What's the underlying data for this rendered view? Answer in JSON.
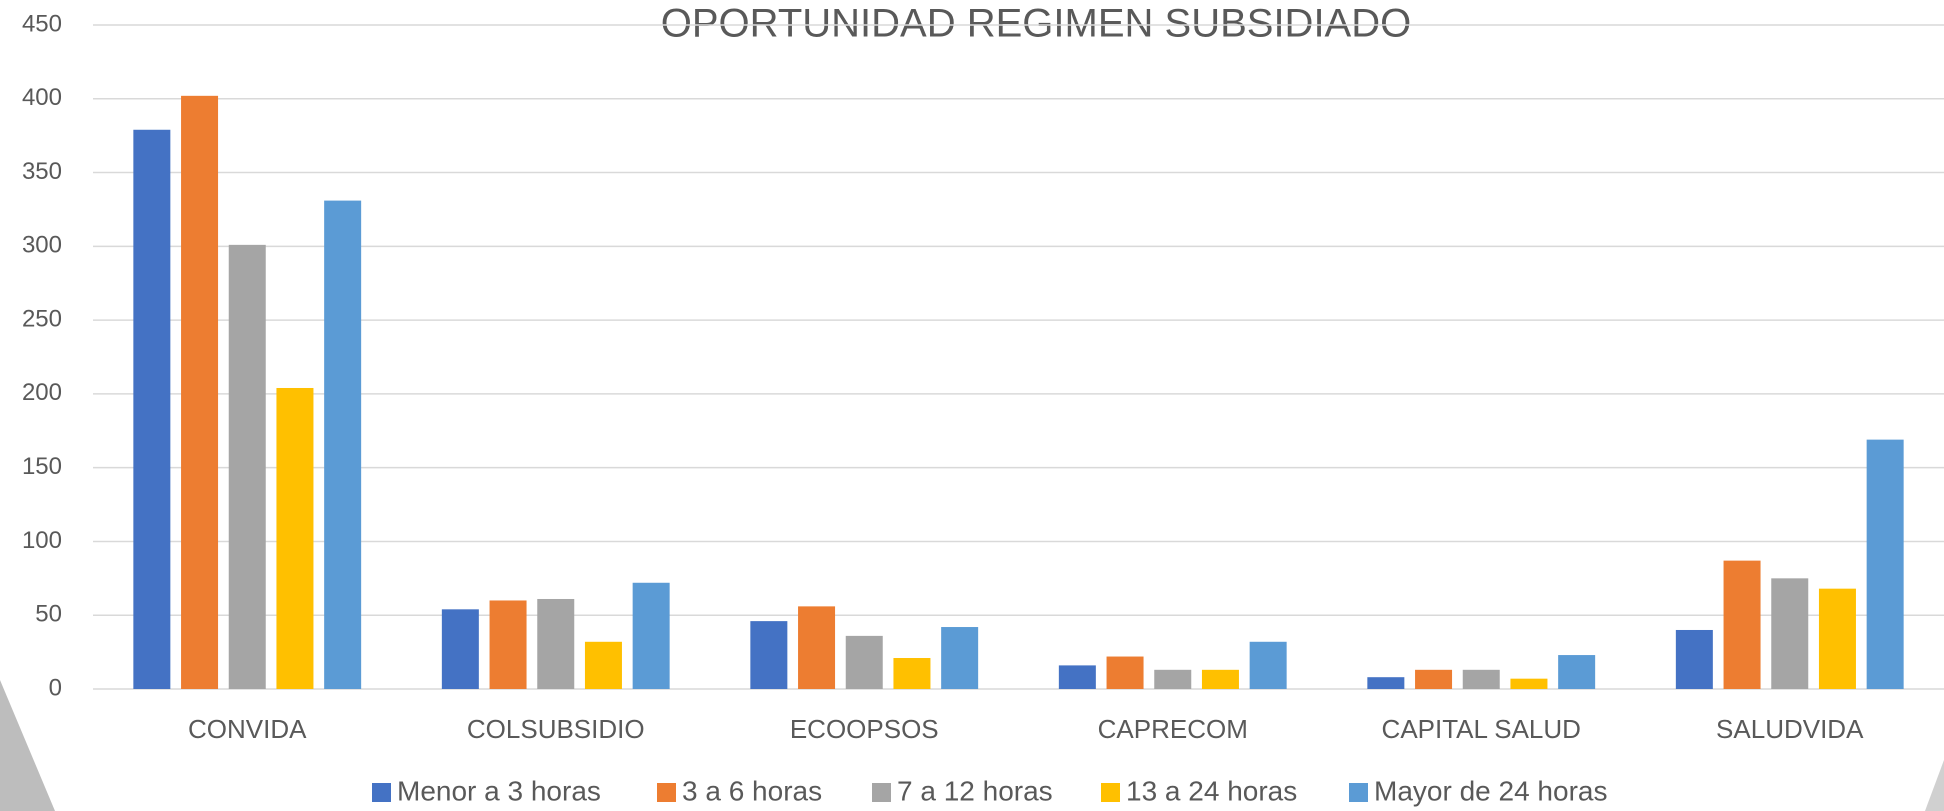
{
  "chart_data": {
    "type": "bar",
    "title": "OPORTUNIDAD REGIMEN SUBSIDIADO",
    "categories": [
      "CONVIDA",
      "COLSUBSIDIO",
      "ECOOPSOS",
      "CAPRECOM",
      "CAPITAL SALUD",
      "SALUDVIDA"
    ],
    "series": [
      {
        "name": "Menor a 3 horas",
        "color": "#4472c4",
        "values": [
          379,
          54,
          46,
          16,
          8,
          40
        ]
      },
      {
        "name": "3 a 6 horas",
        "color": "#ed7d31",
        "values": [
          402,
          60,
          56,
          22,
          13,
          87
        ]
      },
      {
        "name": "7 a 12 horas",
        "color": "#a5a5a5",
        "values": [
          301,
          61,
          36,
          13,
          13,
          75
        ]
      },
      {
        "name": "13 a 24 horas",
        "color": "#ffc000",
        "values": [
          204,
          32,
          21,
          13,
          7,
          68
        ]
      },
      {
        "name": "Mayor de 24 horas",
        "color": "#5b9bd5",
        "values": [
          331,
          72,
          42,
          32,
          23,
          169
        ]
      }
    ],
    "ylim": [
      0,
      450
    ],
    "yticks": [
      0,
      50,
      100,
      150,
      200,
      250,
      300,
      350,
      400,
      450
    ],
    "grid": true,
    "legend": "bottom"
  }
}
